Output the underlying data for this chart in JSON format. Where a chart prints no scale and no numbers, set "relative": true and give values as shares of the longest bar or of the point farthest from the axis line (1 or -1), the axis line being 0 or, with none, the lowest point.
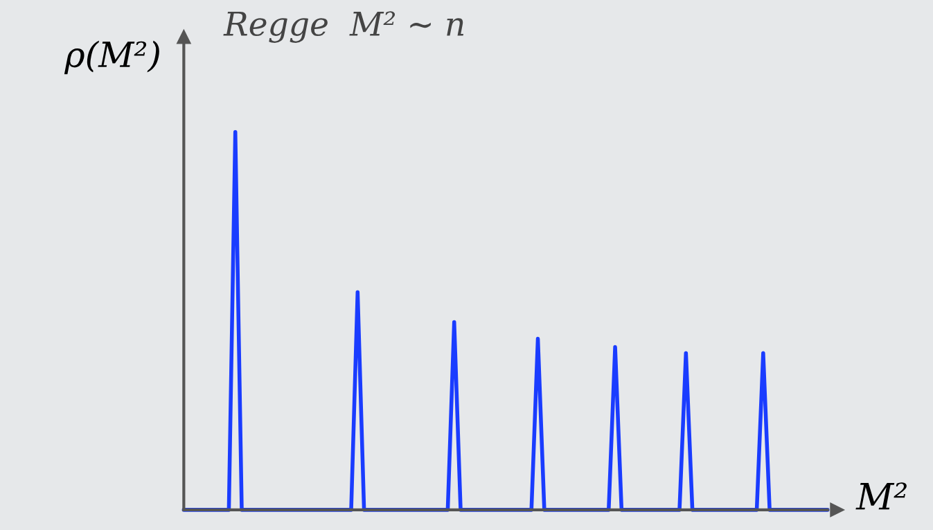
{
  "chart_data": {
    "type": "line",
    "relative": true,
    "title": "Regge  M² ∼ n",
    "xlabel": "M²",
    "ylabel": "ρ(M²)",
    "color": "#1a3cff",
    "legend": false,
    "marker": "none",
    "categories": [
      null,
      null,
      null,
      null,
      null,
      null,
      null,
      null,
      null,
      null,
      null,
      null,
      null,
      null,
      null,
      null,
      null,
      null,
      null,
      null,
      null,
      null,
      null,
      null,
      null,
      null,
      null,
      null,
      null,
      null,
      null,
      null,
      null,
      null,
      null,
      null,
      null,
      null,
      null,
      null,
      null,
      null,
      null,
      null,
      null,
      null,
      null,
      null,
      null,
      null,
      null,
      null,
      null,
      null,
      null,
      null,
      null,
      null,
      null,
      null,
      null,
      null,
      null,
      null,
      null,
      null,
      null,
      null,
      null,
      null,
      null,
      null,
      null,
      null,
      null,
      null,
      null,
      null,
      null,
      null,
      null,
      null,
      null,
      null,
      null,
      null,
      null,
      null,
      null,
      null,
      null,
      null,
      null,
      null,
      null,
      null,
      null,
      null,
      null,
      null,
      null
    ],
    "values": [
      0,
      0,
      0,
      0,
      0,
      0,
      0,
      0,
      1,
      0,
      0,
      0,
      0,
      0,
      0,
      0,
      0,
      0,
      0,
      0,
      0,
      0,
      0,
      0,
      0,
      0,
      0,
      0.576,
      0,
      0,
      0,
      0,
      0,
      0,
      0,
      0,
      0,
      0,
      0,
      0,
      0,
      0,
      0.497,
      0,
      0,
      0,
      0,
      0,
      0,
      0,
      0,
      0,
      0,
      0,
      0,
      0.453,
      0,
      0,
      0,
      0,
      0,
      0,
      0,
      0,
      0,
      0,
      0,
      0.431,
      0,
      0,
      0,
      0,
      0,
      0,
      0,
      0,
      0,
      0,
      0.415,
      0,
      0,
      0,
      0,
      0,
      0,
      0,
      0,
      0,
      0,
      0,
      0.415,
      0,
      0,
      0,
      0,
      0,
      0,
      0,
      0,
      0,
      0
    ]
  }
}
